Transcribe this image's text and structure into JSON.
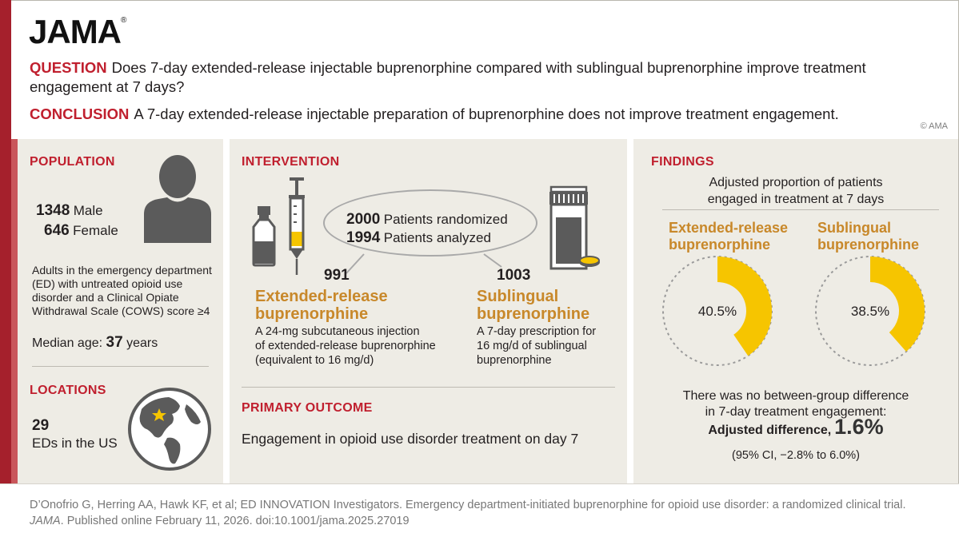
{
  "journal": "JAMA",
  "question": {
    "label": "QUESTION",
    "text": "Does 7-day extended-release injectable buprenorphine compared with sublingual buprenorphine improve treatment engagement at 7 days?"
  },
  "conclusion": {
    "label": "CONCLUSION",
    "text": "A 7-day extended-release injectable preparation of buprenorphine does not improve treatment engagement."
  },
  "copyright": "© AMA",
  "population": {
    "heading": "POPULATION",
    "male_count": "1348",
    "male_label": "Male",
    "female_count": "646",
    "female_label": "Female",
    "description": "Adults in the emergency department (ED) with untreated opioid use disorder and a Clinical Opiate Withdrawal Scale (COWS) score ≥4",
    "median_age_label": "Median age:",
    "median_age_value": "37",
    "median_age_unit": "years"
  },
  "locations": {
    "heading": "LOCATIONS",
    "count": "29",
    "label": "EDs in the US"
  },
  "intervention": {
    "heading": "INTERVENTION",
    "randomized_count": "2000",
    "randomized_label": "Patients randomized",
    "analyzed_count": "1994",
    "analyzed_label": "Patients analyzed",
    "arm1": {
      "n": "991",
      "name_line1": "Extended-release",
      "name_line2": "buprenorphine",
      "desc_line1": "A 24-mg subcutaneous injection",
      "desc_line2": "of extended-release buprenorphine",
      "desc_line3": "(equivalent to 16 mg/d)"
    },
    "arm2": {
      "n": "1003",
      "name_line1": "Sublingual",
      "name_line2": "buprenorphine",
      "desc_line1": "A 7-day prescription for",
      "desc_line2": "16 mg/d of sublingual",
      "desc_line3": "buprenorphine"
    }
  },
  "primary_outcome": {
    "heading": "PRIMARY OUTCOME",
    "text": "Engagement in opioid use disorder treatment on day 7"
  },
  "findings": {
    "heading": "FINDINGS",
    "subtitle_line1": "Adjusted proportion of patients",
    "subtitle_line2": "engaged in treatment at 7 days",
    "group1_line1": "Extended-release",
    "group1_line2": "buprenorphine",
    "group1_value_label": "40.5%",
    "group2_line1": "Sublingual",
    "group2_line2": "buprenorphine",
    "group2_value_label": "38.5%",
    "summary_line1": "There was no between-group difference",
    "summary_line2": "in 7-day treatment engagement:",
    "adj_diff_label": "Adjusted difference,",
    "adj_diff_value": "1.6%",
    "ci": "(95% CI, −2.8% to 6.0%)"
  },
  "chart_data": {
    "type": "pie",
    "categories": [
      "Extended-release buprenorphine",
      "Sublingual buprenorphine"
    ],
    "values": [
      40.5,
      38.5
    ],
    "unit": "%",
    "colors": {
      "filled": "#f6c500",
      "remainder_outline": "#9a9a9a"
    }
  },
  "citation": {
    "line1": "D’Onofrio G, Herring AA, Hawk KF, et al; ED INNOVATION Investigators. Emergency department-initiated buprenorphine for opioid use disorder: a randomized clinical trial.",
    "journal_italic": "JAMA",
    "line2": ". Published online February 11, 2026. doi:10.1001/jama.2025.27019"
  },
  "colors": {
    "accent_red": "#c01f2e",
    "bar_red": "#a5202c",
    "orange_text": "#c8882a",
    "donut_yellow": "#f6c500",
    "panel_bg": "#eeece5",
    "icon_gray": "#5b5b5b"
  }
}
